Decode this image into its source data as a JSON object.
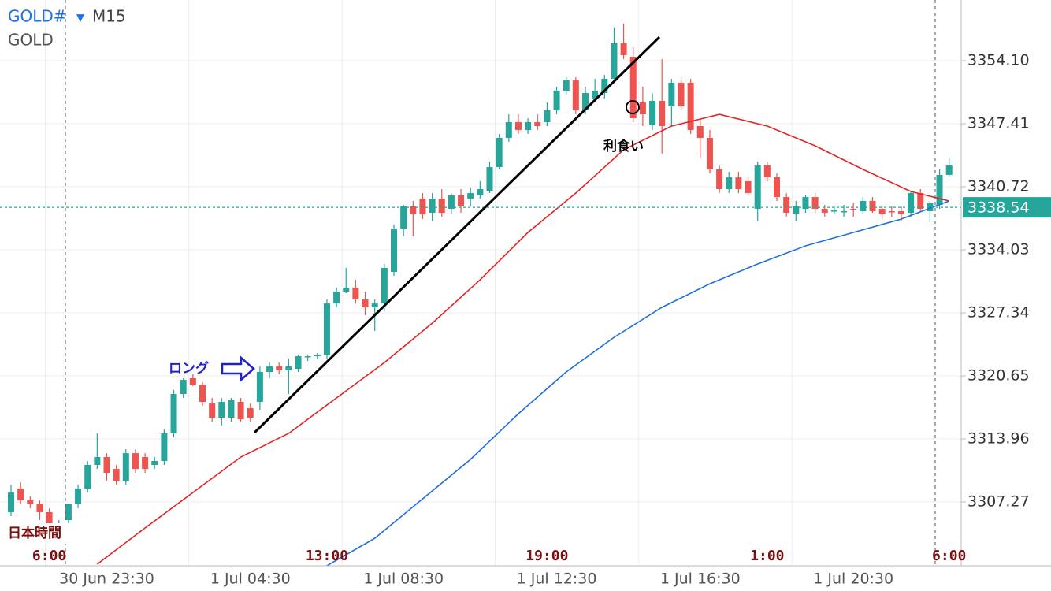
{
  "header": {
    "symbol": "GOLD#",
    "dropdown": "▼",
    "timeframe": "M15",
    "description": "GOLD"
  },
  "chart_data": {
    "type": "candlestick",
    "up_color": "#26a69a",
    "down_color": "#ef5350",
    "ylim": [
      3300.5,
      3360.54
    ],
    "yticks": [
      {
        "value": 3354.1,
        "label": "3354.10"
      },
      3347.41,
      3340.72,
      3334.03,
      3327.34,
      3320.65,
      3313.96,
      3307.27
    ],
    "grid": true,
    "current_price": 3338.54,
    "current_price_color": "#26a69a",
    "time_zone_label": "日本時間",
    "annotations": {
      "long": "ロング",
      "take_profit": "利食い"
    },
    "categories": [
      null,
      null,
      null,
      null,
      null,
      null,
      null,
      null,
      null,
      null,
      "30 Jun 23:30",
      null,
      null,
      null,
      null,
      null,
      null,
      null,
      null,
      null,
      null,
      null,
      null,
      null,
      null,
      "1 Jul 04:30",
      null,
      null,
      null,
      null,
      null,
      null,
      null,
      null,
      null,
      null,
      null,
      null,
      null,
      null,
      null,
      "1 Jul 08:30",
      null,
      null,
      null,
      null,
      null,
      null,
      null,
      null,
      null,
      null,
      null,
      null,
      null,
      null,
      null,
      "1 Jul 12:30",
      null,
      null,
      null,
      null,
      null,
      null,
      null,
      null,
      null,
      null,
      null,
      null,
      null,
      null,
      "1 Jul 16:30",
      null,
      null,
      null,
      null,
      null,
      null,
      null,
      null,
      null,
      null,
      null,
      null,
      null,
      null,
      null,
      "1 Jul 20:30",
      null,
      null,
      null,
      null,
      null,
      null,
      null,
      null,
      null,
      null
    ],
    "jst_categories": [
      null,
      null,
      null,
      null,
      "6:00",
      null,
      null,
      null,
      null,
      null,
      null,
      null,
      null,
      null,
      null,
      null,
      null,
      null,
      null,
      null,
      null,
      null,
      null,
      null,
      null,
      null,
      null,
      null,
      null,
      null,
      null,
      null,
      null,
      "13:00",
      null,
      null,
      null,
      null,
      null,
      null,
      null,
      null,
      null,
      null,
      null,
      null,
      null,
      null,
      null,
      null,
      null,
      null,
      null,
      null,
      null,
      null,
      "19:00",
      null,
      null,
      null,
      null,
      null,
      null,
      null,
      null,
      null,
      null,
      null,
      null,
      null,
      null,
      null,
      null,
      null,
      null,
      null,
      null,
      null,
      null,
      "1:00",
      null,
      null,
      null,
      null,
      null,
      null,
      null,
      null,
      null,
      null,
      null,
      null,
      null,
      null,
      null,
      null,
      null,
      null,
      "6:00"
    ],
    "open": [
      3306.19,
      3308.69,
      3307.44,
      3307.02,
      3306.19,
      3303.68,
      3305.35,
      3307.02,
      3308.69,
      3311.2,
      3312.04,
      3310.78,
      3309.53,
      3312.45,
      3312.04,
      3311.2,
      3311.62,
      3314.55,
      3318.73,
      3320.4,
      3319.73,
      3317.72,
      3316.22,
      3316.22,
      3317.89,
      3317.22,
      3317.89,
      3321.07,
      3321.65,
      3321.24,
      3321.4,
      3322.66,
      3322.74,
      3322.91,
      3328.34,
      3329.6,
      3330.02,
      3328.76,
      3327.93,
      3328.34,
      3331.69,
      3336.29,
      3338.63,
      3339.47,
      3337.96,
      3339.47,
      3338.38,
      3339.8,
      3339.47,
      3339.8,
      3340.3,
      3342.81,
      3345.91,
      3347.58,
      3346.74,
      3347.58,
      3347.58,
      3348.83,
      3350.92,
      3352.01,
      3348.83,
      3350.09,
      3350.67,
      3352.18,
      3355.94,
      3354.52,
      3349.67,
      3347.33,
      3349.84,
      3349.25,
      3351.76,
      3351.76,
      3347.16,
      3345.91,
      3342.56,
      3340.47,
      3341.72,
      3341.31,
      3338.38,
      3342.98,
      3341.72,
      3339.63,
      3337.79,
      3338.38,
      3339.63,
      3338.38,
      3338.13,
      3338.13,
      3338.38,
      3338.13,
      3339.22,
      3338.38,
      3338.13,
      3338.13,
      3337.96,
      3340.05,
      3338.13,
      3338.8,
      3341.98
    ],
    "high": [
      3309.11,
      3309.36,
      3307.86,
      3307.44,
      3306.6,
      3305.35,
      3307.02,
      3309.11,
      3311.62,
      3314.55,
      3312.45,
      3311.2,
      3312.87,
      3312.87,
      3312.45,
      3312.04,
      3314.96,
      3319.15,
      3320.4,
      3320.82,
      3319.98,
      3318.31,
      3318.31,
      3318.31,
      3318.31,
      3317.72,
      3321.65,
      3322.07,
      3322.07,
      3322.49,
      3322.91,
      3322.91,
      3323.08,
      3328.76,
      3330.02,
      3332.11,
      3330.85,
      3329.6,
      3328.76,
      3332.53,
      3336.71,
      3338.8,
      3339.22,
      3340.05,
      3340.05,
      3340.47,
      3340.05,
      3340.47,
      3340.64,
      3341.31,
      3343.4,
      3346.32,
      3348.41,
      3348.41,
      3348.0,
      3348.41,
      3349.67,
      3351.34,
      3352.35,
      3352.35,
      3351.34,
      3352.18,
      3352.6,
      3357.61,
      3358.03,
      3355.52,
      3351.34,
      3350.67,
      3354.27,
      3352.18,
      3352.35,
      3352.18,
      3348.0,
      3346.74,
      3342.98,
      3342.31,
      3342.31,
      3341.72,
      3343.4,
      3343.4,
      3342.14,
      3340.05,
      3339.22,
      3339.8,
      3340.05,
      3338.8,
      3338.63,
      3338.8,
      3338.97,
      3339.63,
      3339.63,
      3338.63,
      3338.63,
      3338.63,
      3340.3,
      3340.47,
      3339.22,
      3342.56,
      3343.82
    ],
    "low": [
      3305.77,
      3307.02,
      3306.6,
      3305.35,
      3302.84,
      3302.84,
      3304.93,
      3306.6,
      3308.27,
      3310.78,
      3309.53,
      3309.11,
      3309.11,
      3310.37,
      3310.37,
      3310.78,
      3311.2,
      3314.13,
      3318.31,
      3319.56,
      3317.47,
      3315.8,
      3315.38,
      3315.8,
      3315.8,
      3315.8,
      3317.05,
      3320.4,
      3320.82,
      3318.73,
      3321.07,
      3322.24,
      3322.41,
      3322.49,
      3327.93,
      3329.43,
      3328.34,
      3327.09,
      3325.42,
      3327.51,
      3331.27,
      3335.45,
      3335.45,
      3337.29,
      3337.13,
      3337.54,
      3337.79,
      3337.96,
      3338.63,
      3339.47,
      3340.05,
      3342.56,
      3345.49,
      3346.32,
      3346.32,
      3346.74,
      3347.16,
      3348.41,
      3350.51,
      3348.41,
      3348.41,
      3349.67,
      3350.09,
      3351.76,
      3354.27,
      3347.58,
      3347.16,
      3346.74,
      3344.23,
      3347.16,
      3348.83,
      3346.32,
      3343.82,
      3342.14,
      3340.05,
      3340.05,
      3340.05,
      3339.8,
      3337.13,
      3341.31,
      3339.22,
      3337.54,
      3337.13,
      3337.96,
      3337.96,
      3337.54,
      3337.79,
      3337.54,
      3337.54,
      3337.79,
      3337.96,
      3337.29,
      3337.54,
      3337.13,
      3337.54,
      3338.13,
      3336.96,
      3338.38,
      3341.72
    ],
    "close": [
      3308.27,
      3307.44,
      3307.02,
      3306.19,
      3303.68,
      3304.51,
      3307.02,
      3308.69,
      3311.2,
      3312.04,
      3310.37,
      3309.53,
      3312.45,
      3310.78,
      3310.78,
      3311.62,
      3314.55,
      3318.73,
      3320.23,
      3319.73,
      3317.89,
      3316.22,
      3317.89,
      3318.06,
      3316.05,
      3316.22,
      3321.07,
      3321.65,
      3321.24,
      3321.65,
      3322.74,
      3322.74,
      3322.91,
      3328.34,
      3329.6,
      3330.02,
      3328.76,
      3327.93,
      3328.34,
      3332.11,
      3336.29,
      3338.63,
      3337.79,
      3337.79,
      3339.47,
      3337.96,
      3339.8,
      3338.63,
      3340.05,
      3340.47,
      3342.81,
      3345.91,
      3347.58,
      3346.74,
      3347.58,
      3347.16,
      3348.83,
      3350.92,
      3352.01,
      3348.83,
      3350.67,
      3350.92,
      3352.18,
      3355.94,
      3354.69,
      3348.0,
      3348.41,
      3349.84,
      3347.16,
      3351.76,
      3349.25,
      3346.74,
      3345.91,
      3342.56,
      3340.47,
      3341.72,
      3340.47,
      3340.05,
      3342.98,
      3341.72,
      3339.63,
      3337.96,
      3338.63,
      3339.63,
      3338.38,
      3337.96,
      3338.21,
      3338.13,
      3338.3,
      3339.22,
      3338.13,
      3337.79,
      3338.05,
      3337.79,
      3340.05,
      3338.38,
      3338.97,
      3341.98,
      3342.98
    ],
    "moving_averages": [
      {
        "color": "#e02424",
        "x": [
          9,
          14,
          19,
          24,
          29,
          34,
          39,
          44,
          49,
          54,
          59,
          64,
          69,
          74,
          79,
          84,
          89,
          94,
          98
        ],
        "values": [
          3300.67,
          3304.51,
          3308.27,
          3312.04,
          3314.55,
          3318.31,
          3322.07,
          3326.25,
          3330.85,
          3335.87,
          3340.05,
          3344.65,
          3347.16,
          3348.41,
          3347.16,
          3345.07,
          3342.56,
          3340.22,
          3339.22
        ]
      },
      {
        "color": "#1e6fd9",
        "x": [
          33,
          38,
          43,
          48,
          53,
          58,
          63,
          68,
          73,
          78,
          83,
          88,
          93,
          98
        ],
        "values": [
          3300.5,
          3303.42,
          3307.61,
          3311.79,
          3316.64,
          3321.07,
          3324.75,
          3327.93,
          3330.43,
          3332.53,
          3334.45,
          3335.87,
          3337.29,
          3339.22
        ]
      }
    ]
  }
}
